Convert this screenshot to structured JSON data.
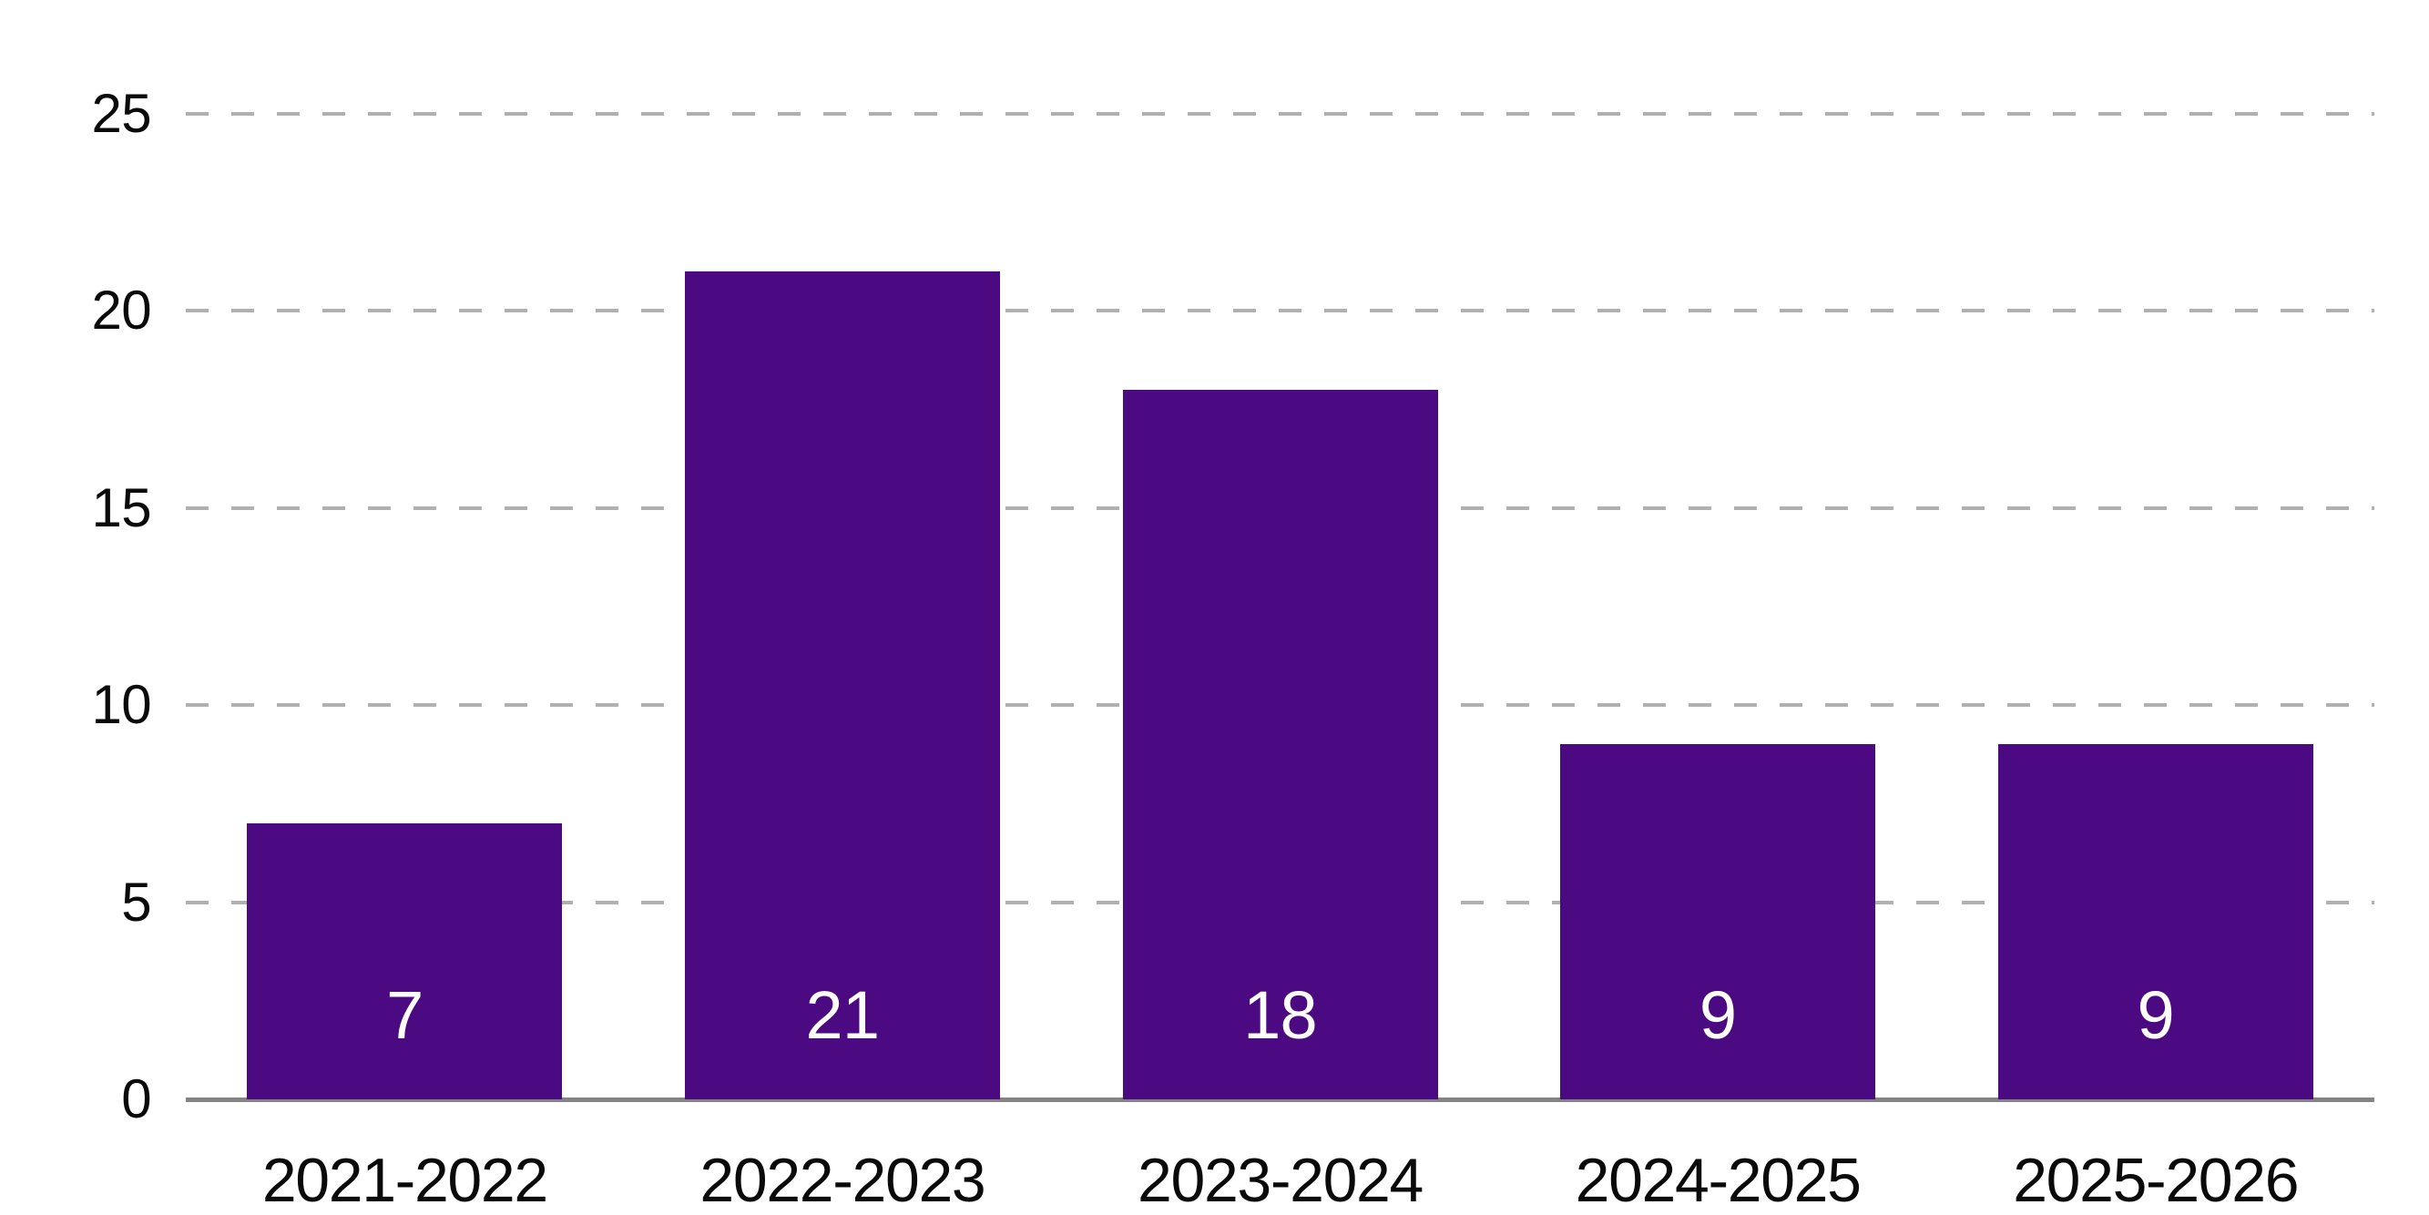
{
  "chart_data": {
    "type": "bar",
    "title": "",
    "xlabel": "",
    "ylabel": "",
    "categories": [
      "2021-2022",
      "2022-2023",
      "2023-2024",
      "2024-2025",
      "2025-2026"
    ],
    "values": [
      7,
      21,
      18,
      9,
      9
    ],
    "value_labels": [
      "7",
      "21",
      "18",
      "9",
      "9"
    ],
    "ylim": [
      0,
      25
    ],
    "yticks": [
      0,
      5,
      10,
      15,
      20,
      25
    ],
    "ytick_labels": [
      "0",
      "5",
      "10",
      "15",
      "20",
      "25"
    ],
    "grid": "horizontal-dashed",
    "legend": "none",
    "colors": {
      "bar": "#4B0982",
      "bar_value_label": "#FFFFFF",
      "gridline": "#B0B0B0",
      "axis_line": "#848484",
      "tick_label": "#0A0A0A",
      "background": "#FFFFFF"
    }
  }
}
